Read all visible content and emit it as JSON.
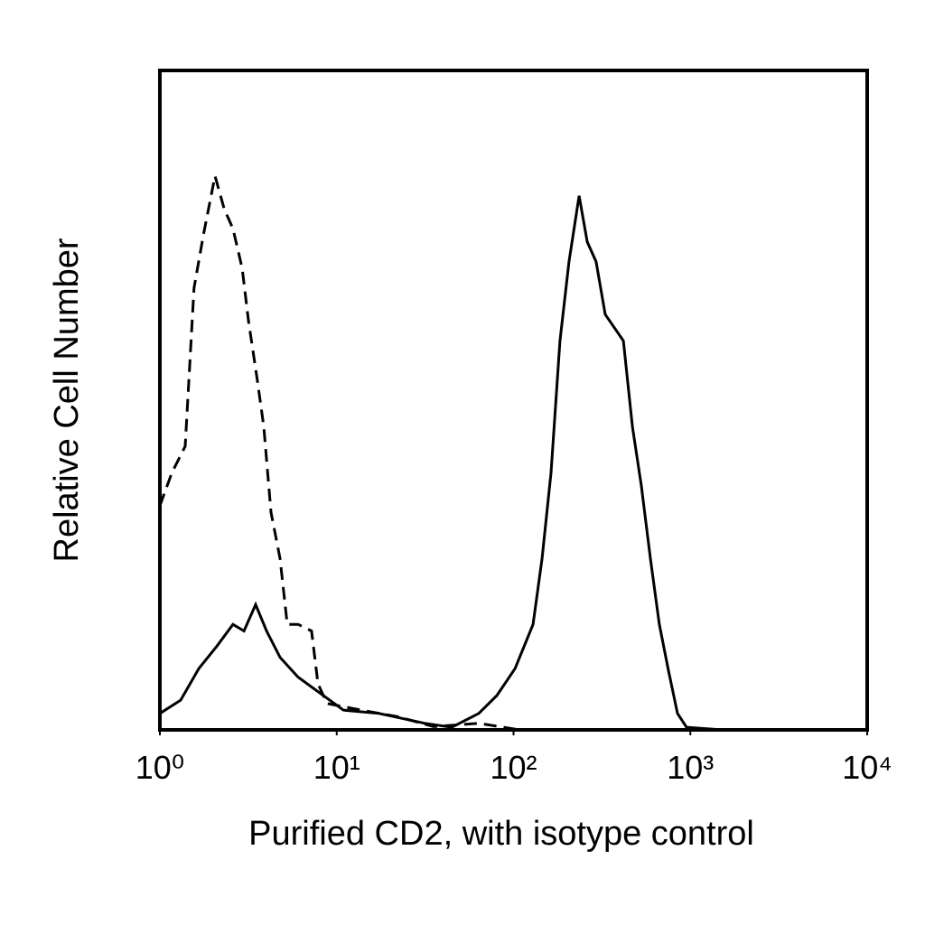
{
  "chart_data": {
    "type": "line",
    "xlabel": "Purified CD2, with isotype control",
    "ylabel": "Relative Cell Number",
    "xscale": "log",
    "xlim": [
      1,
      10000
    ],
    "xticks": [
      {
        "value": 1,
        "label": "10⁰"
      },
      {
        "value": 10,
        "label": "10¹"
      },
      {
        "value": 100,
        "label": "10²"
      },
      {
        "value": 1000,
        "label": "10³"
      },
      {
        "value": 10000,
        "label": "10⁴"
      }
    ],
    "ylim": [
      0,
      100
    ],
    "series": [
      {
        "color": "#000000",
        "line_style": "dashed",
        "x": [
          1.0,
          1.17,
          1.39,
          1.56,
          1.76,
          2.05,
          2.31,
          2.59,
          2.92,
          3.17,
          3.56,
          3.87,
          4.25,
          4.78,
          5.25,
          6.05,
          7.21,
          7.83,
          8.81,
          13.8,
          22.1,
          35.3,
          63.6,
          108
        ],
        "values": [
          34,
          39,
          43,
          67,
          75,
          84,
          79,
          76,
          70,
          62,
          53,
          46,
          33,
          26,
          16,
          16,
          15,
          7,
          4,
          3,
          2,
          0.5,
          1,
          0
        ]
      },
      {
        "color": "#000000",
        "line_style": "solid",
        "x": [
          1.0,
          1.31,
          1.66,
          2.1,
          2.59,
          2.99,
          3.48,
          4.01,
          4.78,
          6.05,
          7.65,
          10.9,
          17.4,
          31.4,
          44.7,
          63.6,
          80.4,
          102,
          129,
          145,
          163,
          183,
          206,
          235,
          261,
          293,
          330,
          418,
          470,
          528,
          594,
          668,
          752,
          846,
          951,
          1520,
          10000
        ],
        "values": [
          2.5,
          4.5,
          9.3,
          12.7,
          16,
          15,
          19,
          15,
          11,
          8,
          6,
          3,
          2.5,
          1,
          0.4,
          2.5,
          5.2,
          9.3,
          16,
          26,
          39,
          59,
          71,
          81,
          74,
          71,
          63,
          59,
          46,
          37,
          26,
          16,
          9,
          2.5,
          0.4,
          0,
          0
        ]
      }
    ]
  }
}
